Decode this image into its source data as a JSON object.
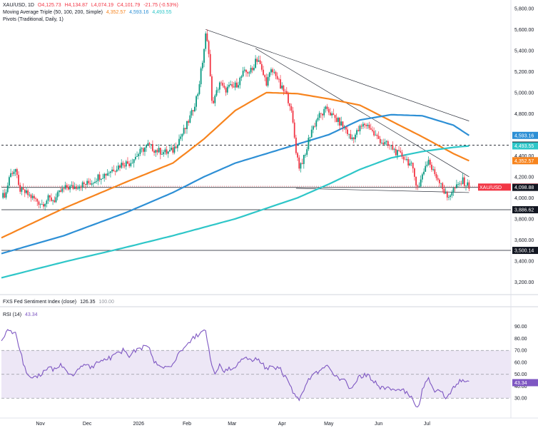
{
  "legend": {
    "symbol": "XAU/USD, 1D",
    "open": "O4,125.73",
    "high": "H4,134.87",
    "low": "L4,074.19",
    "close": "C4,101.79",
    "change": "-21.75 (-0.53%)",
    "ma_label": "Moving Average Triple (50, 100, 200, Simple)",
    "ma50_val": "4,352.57",
    "ma100_val": "4,593.16",
    "ma200_val": "4,493.55",
    "pivots_label": "Pivots (Traditional, Daily, 1)",
    "sentiment_label": "FXS Fed Sentiment Index (close)",
    "sentiment_val": "126.35",
    "sentiment_val2": "100.00",
    "rsi_label": "RSI (14)",
    "rsi_val": "43.34"
  },
  "colors": {
    "up": "#089981",
    "down": "#f23645",
    "ma50": "#f7841e",
    "ma100": "#2d8fd5",
    "ma200": "#2ec6c8",
    "rsi": "#7e57c2",
    "rsi_band": "#ede7f6"
  },
  "chart_data": [
    {
      "type": "candlestick",
      "title": "XAU/USD, 1D",
      "x_labels": [
        "Nov",
        "Dec",
        "2026",
        "Feb",
        "Mar",
        "Apr",
        "May",
        "Jun",
        "Jul"
      ],
      "y_ticks": [
        3200,
        3400,
        3600,
        3800,
        4000,
        4200,
        4400,
        4600,
        4800,
        5000,
        5200,
        5400,
        5600,
        5800
      ],
      "ylim": [
        3080,
        5880
      ],
      "price_tags": [
        {
          "label": "4,593.16",
          "value": 4593.16,
          "color": "#2d8fd5"
        },
        {
          "label": "4,500.00",
          "value": 4500.0,
          "color": "#131722"
        },
        {
          "label": "4,493.55",
          "value": 4493.55,
          "color": "#2ec6c8"
        },
        {
          "label": "4,352.57",
          "value": 4352.57,
          "color": "#f7841e"
        },
        {
          "label": "XAU/USD",
          "value": 4101.79,
          "color": "#f23645"
        },
        {
          "label": "4,098.88",
          "value": 4098.88,
          "color": "#131722"
        },
        {
          "label": "3,886.62",
          "value": 3886.62,
          "color": "#131722"
        },
        {
          "label": "3,500.14",
          "value": 3500.14,
          "color": "#131722"
        }
      ],
      "last_price_label": "4,101.79",
      "horizontal_levels": [
        {
          "value": 4500.0,
          "style": "dashed"
        },
        {
          "value": 4098.88,
          "style": "solid"
        },
        {
          "value": 3886.62,
          "style": "solid"
        },
        {
          "value": 3500.14,
          "style": "solid"
        }
      ],
      "price_path": [
        [
          0,
          4000
        ],
        [
          3,
          4050
        ],
        [
          5,
          4200
        ],
        [
          7,
          4250
        ],
        [
          9,
          4270
        ],
        [
          11,
          4100
        ],
        [
          13,
          4060
        ],
        [
          15,
          4050
        ],
        [
          18,
          4020
        ],
        [
          22,
          3980
        ],
        [
          26,
          3940
        ],
        [
          30,
          3990
        ],
        [
          34,
          3980
        ],
        [
          38,
          4060
        ],
        [
          42,
          4100
        ],
        [
          46,
          4100
        ],
        [
          50,
          4120
        ],
        [
          54,
          4130
        ],
        [
          58,
          4150
        ],
        [
          62,
          4200
        ],
        [
          66,
          4220
        ],
        [
          70,
          4260
        ],
        [
          74,
          4290
        ],
        [
          78,
          4330
        ],
        [
          82,
          4330
        ],
        [
          86,
          4390
        ],
        [
          90,
          4450
        ],
        [
          94,
          4500
        ],
        [
          98,
          4460
        ],
        [
          102,
          4440
        ],
        [
          106,
          4430
        ],
        [
          110,
          4450
        ],
        [
          114,
          4560
        ],
        [
          118,
          4660
        ],
        [
          122,
          4800
        ],
        [
          126,
          5000
        ],
        [
          129,
          5300
        ],
        [
          131,
          5540
        ],
        [
          133,
          5400
        ],
        [
          135,
          4900
        ],
        [
          137,
          4950
        ],
        [
          140,
          5100
        ],
        [
          143,
          5020
        ],
        [
          146,
          5050
        ],
        [
          149,
          5050
        ],
        [
          152,
          5100
        ],
        [
          155,
          5180
        ],
        [
          158,
          5200
        ],
        [
          161,
          5210
        ],
        [
          163,
          5320
        ],
        [
          165,
          5310
        ],
        [
          167,
          5200
        ],
        [
          170,
          5100
        ],
        [
          173,
          5200
        ],
        [
          176,
          5180
        ],
        [
          179,
          5050
        ],
        [
          182,
          5000
        ],
        [
          185,
          4900
        ],
        [
          187,
          4700
        ],
        [
          189,
          4450
        ],
        [
          191,
          4300
        ],
        [
          193,
          4350
        ],
        [
          195,
          4400
        ],
        [
          197,
          4550
        ],
        [
          199,
          4650
        ],
        [
          201,
          4700
        ],
        [
          203,
          4770
        ],
        [
          206,
          4800
        ],
        [
          209,
          4850
        ],
        [
          212,
          4780
        ],
        [
          215,
          4740
        ],
        [
          218,
          4700
        ],
        [
          221,
          4650
        ],
        [
          224,
          4560
        ],
        [
          227,
          4600
        ],
        [
          230,
          4660
        ],
        [
          233,
          4700
        ],
        [
          236,
          4680
        ],
        [
          239,
          4600
        ],
        [
          242,
          4560
        ],
        [
          245,
          4520
        ],
        [
          248,
          4500
        ],
        [
          251,
          4470
        ],
        [
          254,
          4420
        ],
        [
          257,
          4400
        ],
        [
          260,
          4360
        ],
        [
          263,
          4300
        ],
        [
          266,
          4150
        ],
        [
          268,
          4100
        ],
        [
          270,
          4230
        ],
        [
          272,
          4300
        ],
        [
          274,
          4360
        ],
        [
          276,
          4270
        ],
        [
          278,
          4230
        ],
        [
          280,
          4180
        ],
        [
          282,
          4150
        ],
        [
          284,
          4050
        ],
        [
          286,
          4000
        ],
        [
          288,
          4040
        ],
        [
          290,
          4080
        ],
        [
          292,
          4100
        ],
        [
          294,
          4130
        ],
        [
          296,
          4160
        ],
        [
          298,
          4130
        ],
        [
          300,
          4110
        ]
      ],
      "moving_averages": [
        {
          "name": "MA 50",
          "values": [
            [
              0,
              3620
            ],
            [
              40,
              3900
            ],
            [
              80,
              4150
            ],
            [
              110,
              4330
            ],
            [
              130,
              4560
            ],
            [
              150,
              4830
            ],
            [
              170,
              5000
            ],
            [
              190,
              4990
            ],
            [
              210,
              4940
            ],
            [
              230,
              4880
            ],
            [
              250,
              4730
            ],
            [
              270,
              4580
            ],
            [
              290,
              4420
            ],
            [
              300,
              4352
            ]
          ]
        },
        {
          "name": "MA 100",
          "values": [
            [
              0,
              3470
            ],
            [
              40,
              3640
            ],
            [
              80,
              3860
            ],
            [
              110,
              4050
            ],
            [
              130,
              4200
            ],
            [
              150,
              4330
            ],
            [
              170,
              4420
            ],
            [
              190,
              4510
            ],
            [
              210,
              4600
            ],
            [
              230,
              4740
            ],
            [
              250,
              4790
            ],
            [
              270,
              4780
            ],
            [
              290,
              4690
            ],
            [
              300,
              4593
            ]
          ]
        },
        {
          "name": "MA 200",
          "values": [
            [
              0,
              3240
            ],
            [
              40,
              3390
            ],
            [
              80,
              3530
            ],
            [
              110,
              3640
            ],
            [
              130,
              3720
            ],
            [
              150,
              3800
            ],
            [
              170,
              3900
            ],
            [
              190,
              4000
            ],
            [
              210,
              4130
            ],
            [
              230,
              4270
            ],
            [
              250,
              4380
            ],
            [
              270,
              4440
            ],
            [
              290,
              4480
            ],
            [
              300,
              4493
            ]
          ]
        }
      ],
      "trendlines": [
        {
          "from": [
            131,
            5600
          ],
          "to": [
            300,
            4730
          ]
        },
        {
          "from": [
            163,
            5420
          ],
          "to": [
            300,
            4200
          ]
        },
        {
          "from": [
            189,
            4090
          ],
          "to": [
            300,
            4050
          ]
        }
      ]
    },
    {
      "type": "line",
      "title": "RSI (14)",
      "y_ticks": [
        30,
        40,
        50,
        60,
        70,
        80,
        90
      ],
      "levels": [
        70,
        50,
        30
      ],
      "ylim": [
        17,
        97
      ],
      "last_label": "43.34",
      "values": [
        [
          0,
          80
        ],
        [
          3,
          85
        ],
        [
          5,
          88
        ],
        [
          7,
          82
        ],
        [
          9,
          86
        ],
        [
          11,
          72
        ],
        [
          13,
          65
        ],
        [
          15,
          55
        ],
        [
          18,
          49
        ],
        [
          22,
          47
        ],
        [
          26,
          50
        ],
        [
          30,
          56
        ],
        [
          34,
          54
        ],
        [
          38,
          58
        ],
        [
          42,
          52
        ],
        [
          46,
          50
        ],
        [
          50,
          55
        ],
        [
          54,
          57
        ],
        [
          58,
          56
        ],
        [
          62,
          60
        ],
        [
          66,
          62
        ],
        [
          70,
          64
        ],
        [
          74,
          67
        ],
        [
          78,
          70
        ],
        [
          82,
          66
        ],
        [
          86,
          70
        ],
        [
          90,
          72
        ],
        [
          94,
          74
        ],
        [
          98,
          60
        ],
        [
          102,
          56
        ],
        [
          106,
          55
        ],
        [
          110,
          58
        ],
        [
          114,
          68
        ],
        [
          118,
          74
        ],
        [
          122,
          79
        ],
        [
          126,
          83
        ],
        [
          129,
          87
        ],
        [
          131,
          88
        ],
        [
          133,
          70
        ],
        [
          135,
          56
        ],
        [
          137,
          52
        ],
        [
          140,
          58
        ],
        [
          143,
          53
        ],
        [
          146,
          55
        ],
        [
          149,
          54
        ],
        [
          152,
          60
        ],
        [
          155,
          62
        ],
        [
          158,
          64
        ],
        [
          161,
          62
        ],
        [
          163,
          64
        ],
        [
          165,
          63
        ],
        [
          167,
          60
        ],
        [
          170,
          54
        ],
        [
          173,
          58
        ],
        [
          176,
          56
        ],
        [
          179,
          54
        ],
        [
          182,
          48
        ],
        [
          185,
          43
        ],
        [
          187,
          34
        ],
        [
          189,
          30
        ],
        [
          191,
          28
        ],
        [
          193,
          34
        ],
        [
          195,
          40
        ],
        [
          197,
          46
        ],
        [
          199,
          48
        ],
        [
          201,
          50
        ],
        [
          203,
          52
        ],
        [
          206,
          54
        ],
        [
          209,
          56
        ],
        [
          212,
          52
        ],
        [
          215,
          48
        ],
        [
          218,
          46
        ],
        [
          221,
          44
        ],
        [
          224,
          38
        ],
        [
          227,
          44
        ],
        [
          230,
          48
        ],
        [
          233,
          50
        ],
        [
          236,
          48
        ],
        [
          239,
          44
        ],
        [
          242,
          40
        ],
        [
          245,
          38
        ],
        [
          248,
          40
        ],
        [
          251,
          38
        ],
        [
          254,
          36
        ],
        [
          257,
          38
        ],
        [
          260,
          34
        ],
        [
          263,
          30
        ],
        [
          266,
          24
        ],
        [
          268,
          25
        ],
        [
          270,
          38
        ],
        [
          272,
          42
        ],
        [
          274,
          46
        ],
        [
          276,
          40
        ],
        [
          278,
          36
        ],
        [
          280,
          38
        ],
        [
          282,
          36
        ],
        [
          284,
          32
        ],
        [
          286,
          30
        ],
        [
          288,
          34
        ],
        [
          290,
          38
        ],
        [
          292,
          40
        ],
        [
          294,
          46
        ],
        [
          296,
          44
        ],
        [
          298,
          42
        ],
        [
          300,
          43
        ]
      ]
    }
  ]
}
